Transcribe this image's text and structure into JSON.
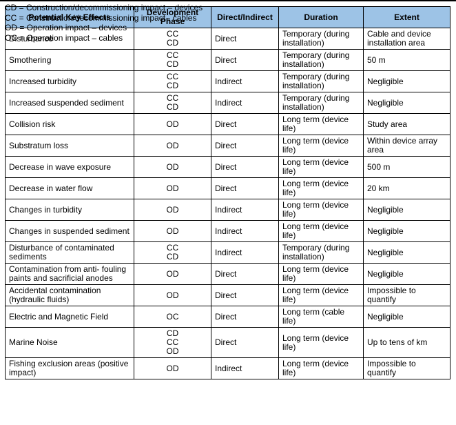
{
  "colors": {
    "header_bg": "#9DC3E6",
    "border": "#000000",
    "text": "#000000"
  },
  "table": {
    "header": [
      "Potential Key Effects",
      "Development Phase",
      "Direct/Indirect",
      "Duration",
      "Extent"
    ],
    "rows": [
      {
        "effect": "Disturbance",
        "phase": [
          "CC",
          "CD"
        ],
        "direct_indirect": "Direct",
        "duration": "Temporary (during installation)",
        "extent": "Cable and device installation area"
      },
      {
        "effect": "Smothering",
        "phase": [
          "CC",
          "CD"
        ],
        "direct_indirect": "Direct",
        "duration": "Temporary (during installation)",
        "extent": "50 m"
      },
      {
        "effect": "Increased turbidity",
        "phase": [
          "CC",
          "CD"
        ],
        "direct_indirect": "Indirect",
        "duration": "Temporary (during installation)",
        "extent": "Negligible"
      },
      {
        "effect": "Increased suspended sediment",
        "phase": [
          "CC",
          "CD"
        ],
        "direct_indirect": "Indirect",
        "duration": "Temporary (during installation)",
        "extent": "Negligible"
      },
      {
        "effect": "Collision risk",
        "phase": [
          "OD"
        ],
        "direct_indirect": "Direct",
        "duration": "Long term (device life)",
        "extent": "Study area"
      },
      {
        "effect": "Substratum loss",
        "phase": [
          "OD"
        ],
        "direct_indirect": "Direct",
        "duration": "Long term (device life)",
        "extent": "Within device array area"
      },
      {
        "effect": "Decrease in wave exposure",
        "phase": [
          "OD"
        ],
        "direct_indirect": "Direct",
        "duration": "Long term (device life)",
        "extent": "500 m"
      },
      {
        "effect": "Decrease in water flow",
        "phase": [
          "OD"
        ],
        "direct_indirect": "Direct",
        "duration": "Long term (device life)",
        "extent": "20 km"
      },
      {
        "effect": "Changes in turbidity",
        "phase": [
          "OD"
        ],
        "direct_indirect": "Indirect",
        "duration": "Long term (device life)",
        "extent": "Negligible"
      },
      {
        "effect": "Changes in suspended sediment",
        "phase": [
          "OD"
        ],
        "direct_indirect": "Indirect",
        "duration": "Long term (device life)",
        "extent": "Negligible"
      },
      {
        "effect": "Disturbance of contaminated sediments",
        "phase": [
          "CC",
          "CD"
        ],
        "direct_indirect": "Indirect",
        "duration": "Temporary (during installation)",
        "extent": "Negligible"
      },
      {
        "effect": "Contamination from anti- fouling paints and sacrificial anodes",
        "phase": [
          "OD"
        ],
        "direct_indirect": "Direct",
        "duration": "Long term (device life)",
        "extent": "Negligible"
      },
      {
        "effect": "Accidental contamination (hydraulic fluids)",
        "phase": [
          "OD"
        ],
        "direct_indirect": "Direct",
        "duration": "Long term (device life)",
        "extent": "Impossible to quantify"
      },
      {
        "effect": "Electric and Magnetic Field",
        "phase": [
          "OC"
        ],
        "direct_indirect": "Direct",
        "duration": "Long term (cable life)",
        "extent": "Negligible"
      },
      {
        "effect": "Marine Noise",
        "phase": [
          "CD",
          "CC",
          "OD"
        ],
        "direct_indirect": "Direct",
        "duration": "Long term (device life)",
        "extent": "Up to tens of km"
      },
      {
        "effect": "Fishing exclusion areas (positive impact)",
        "phase": [
          "OD"
        ],
        "direct_indirect": "Indirect",
        "duration": "Long term (device life)",
        "extent": "Impossible to quantify"
      }
    ]
  },
  "footnotes": [
    "CD = Construction/decommissioning impact – devices",
    "CC = Construction/decommissioning impact - cables",
    "OD = Operation impact – devices",
    "OC = Operation impact – cables"
  ]
}
